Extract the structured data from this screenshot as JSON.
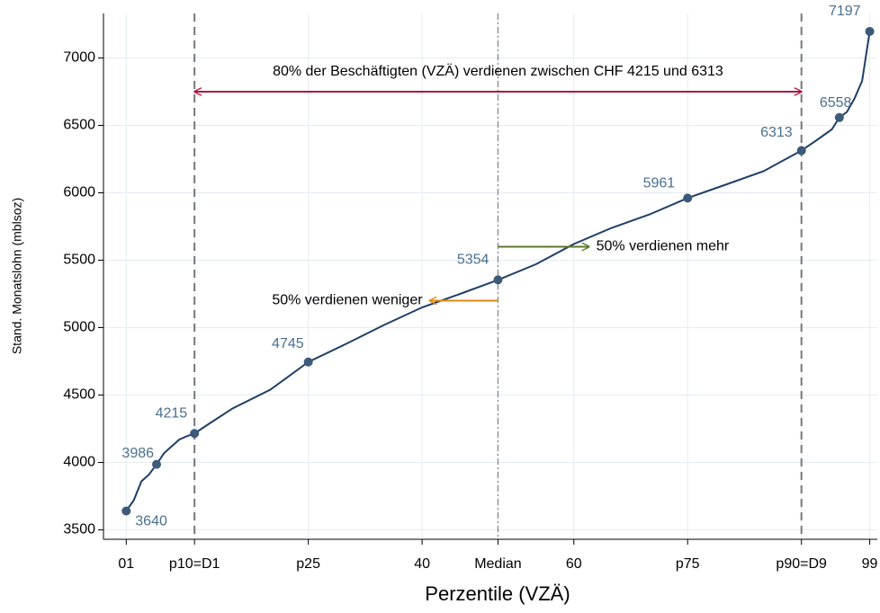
{
  "chart_data": {
    "type": "line",
    "xlabel": "Perzentile (VZÄ)",
    "ylabel": "Stand. Monatslohn (mblsoz)",
    "xlim": [
      -2,
      100
    ],
    "ylim": [
      3430,
      7330
    ],
    "xticks": [
      {
        "value": 1,
        "label": "01"
      },
      {
        "value": 10,
        "label": "p10=D1"
      },
      {
        "value": 25,
        "label": "p25"
      },
      40,
      {
        "value": 50,
        "label": "Median"
      },
      60,
      {
        "value": 75,
        "label": "p75"
      },
      {
        "value": 90,
        "label": "p90=D9"
      },
      99
    ],
    "yticks": [
      3500,
      4000,
      4500,
      5000,
      5500,
      6000,
      6500,
      7000
    ],
    "grid": true,
    "series": [
      {
        "color": "#1f3f66",
        "x": [
          1,
          2,
          3,
          4,
          5,
          6,
          7,
          8,
          9,
          10,
          12,
          15,
          20,
          25,
          30,
          35,
          40,
          45,
          50,
          55,
          60,
          65,
          70,
          75,
          80,
          85,
          90,
          92,
          94,
          95,
          96,
          97,
          98,
          99
        ],
        "values": [
          3640,
          3720,
          3860,
          3910,
          3986,
          4070,
          4120,
          4170,
          4195,
          4215,
          4290,
          4400,
          4540,
          4745,
          4880,
          5020,
          5150,
          5250,
          5354,
          5470,
          5620,
          5740,
          5840,
          5961,
          6060,
          6160,
          6313,
          6390,
          6470,
          6558,
          6600,
          6700,
          6830,
          7197
        ]
      }
    ],
    "points": {
      "color": "#3d5a78",
      "label_color": "#4a6f8f",
      "x": [
        1,
        5,
        10,
        25,
        50,
        75,
        90,
        95,
        99
      ],
      "values": [
        3640,
        3986,
        4215,
        4745,
        5354,
        5961,
        6313,
        6558,
        7197
      ]
    },
    "vlines": [
      {
        "x": 10,
        "style": "dashed"
      },
      {
        "x": 50,
        "style": "dashdot"
      },
      {
        "x": 90,
        "style": "dashed"
      }
    ],
    "arrows": [
      {
        "text": "80% der Beschäftigten (VZÄ) verdienen zwischen CHF 4215 und 6313",
        "x1": 10,
        "x2": 90,
        "y": 6750,
        "color": "#b0173f",
        "both": true
      },
      {
        "text": "50% verdienen mehr",
        "x1": 50,
        "x2": 62,
        "y": 5600,
        "color": "#5a7a2a",
        "both": false
      },
      {
        "text": "50% verdienen weniger",
        "x1": 50,
        "x2": 41,
        "y": 5200,
        "color": "#e08a10",
        "both": false
      }
    ]
  }
}
